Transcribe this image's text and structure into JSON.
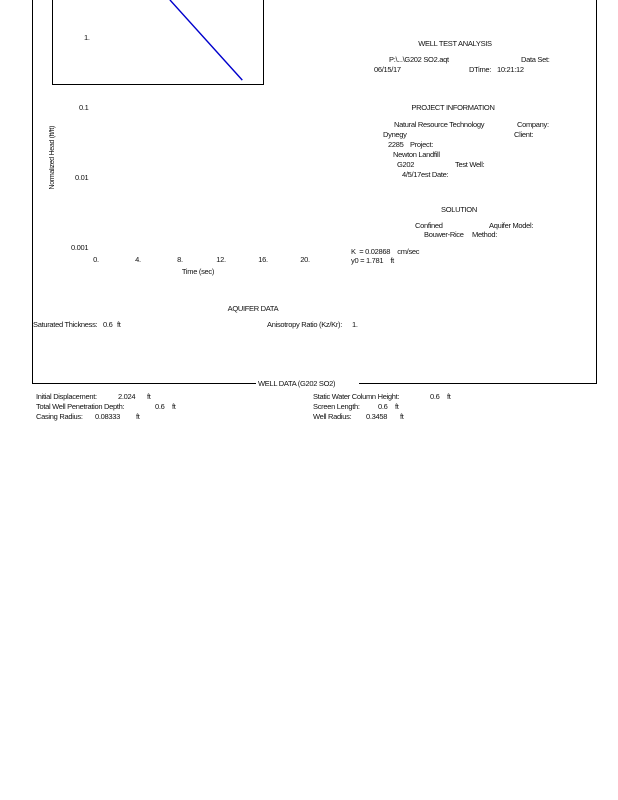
{
  "header": {
    "title": "WELL TEST ANALYSIS",
    "data_set": {
      "value": "P:\\...\\G202 SO2.aqt",
      "label": "Data Set:"
    },
    "date_value": "06/15/17",
    "time_label": "DTime:",
    "time_value": "10:21:12"
  },
  "project_information": {
    "title": "PROJECT INFORMATION",
    "company": {
      "value": "Natural Resource Technology",
      "label": "Company:"
    },
    "client": {
      "value": "Dynegy",
      "label": "Client:"
    },
    "project": {
      "value": "2285",
      "label": "Project:"
    },
    "location_value": "Newton Landfill",
    "test_well": {
      "value": "G202",
      "label": "Test Well:"
    },
    "test_date": {
      "value": "4/5/17",
      "label": "est Date:"
    }
  },
  "solution": {
    "title": "SOLUTION",
    "aquifer_model": {
      "value": "Confined",
      "label": "Aquifer Model:"
    },
    "method": {
      "value": "Bouwer-Rice",
      "label": "Method:"
    },
    "k_line": "K  = 0.02868    cm/sec",
    "y0_line": "y0 = 1.781    ft"
  },
  "chart": {
    "inner_y_tick": "1.",
    "y_ticks": [
      "0.1",
      "0.01",
      "0.001"
    ],
    "x_ticks": [
      "0.",
      "4.",
      "8.",
      "12.",
      "16.",
      "20."
    ],
    "xlabel": "Time (sec)",
    "ylabel": "Normalized Head (ft/ft)",
    "line_color": "#0000cc"
  },
  "chart_data": {
    "type": "line",
    "xlabel": "Time (sec)",
    "ylabel": "Normalized Head (ft/ft)",
    "x_scale": "linear",
    "y_scale": "log",
    "xlim": [
      0,
      20
    ],
    "y_tick_labels": [
      "1.",
      "0.1",
      "0.01",
      "0.001"
    ],
    "legend": "off",
    "grid": "off",
    "series": [
      {
        "name": "normalized-head",
        "x": [
          7.0,
          13.9
        ],
        "y": [
          3.5,
          0.25
        ]
      }
    ]
  },
  "aquifer_data": {
    "title": "AQUIFER DATA",
    "saturated_thickness": {
      "label": "Saturated Thickness:",
      "value": "0.6",
      "unit": "ft"
    },
    "anisotropy_ratio": {
      "label": "Anisotropy Ratio (Kz/Kr):",
      "value": "1."
    }
  },
  "well_data": {
    "title": "WELL DATA (G202 SO2)",
    "initial_displacement": {
      "label": "Initial Displacement:",
      "value": "2.024",
      "unit": "ft"
    },
    "total_well_penetration_depth": {
      "label": "Total Well Penetration Depth:",
      "value": "0.6",
      "unit": "ft"
    },
    "casing_radius": {
      "label": "Casing Radius:",
      "value": "0.08333",
      "unit": "ft"
    },
    "static_water_column_height": {
      "label": "Static Water Column Height:",
      "value": "0.6",
      "unit": "ft"
    },
    "screen_length": {
      "label": "Screen Length:",
      "value": "0.6",
      "unit": "ft"
    },
    "well_radius": {
      "label": "Well Radius:",
      "value": "0.3458",
      "unit": "ft"
    }
  }
}
